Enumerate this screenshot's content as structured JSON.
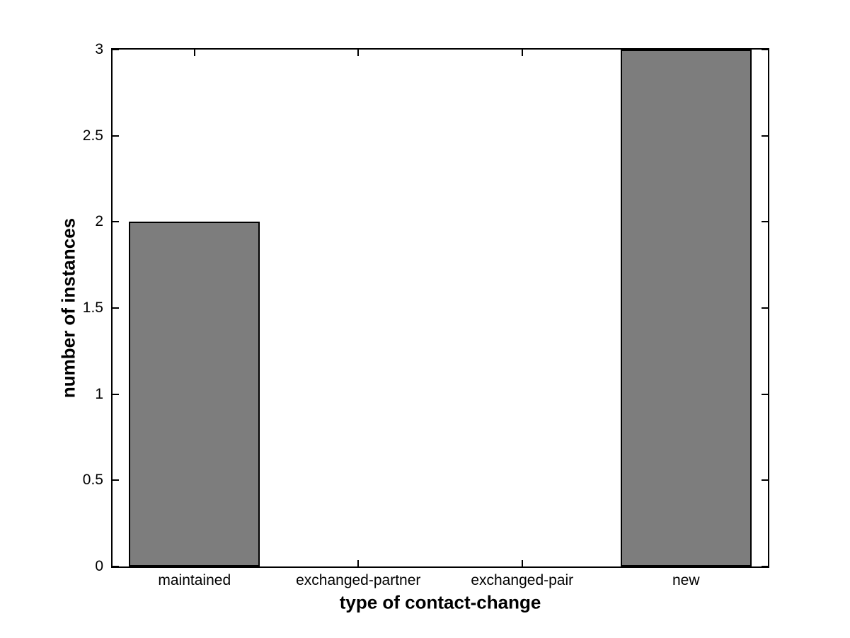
{
  "chart_data": {
    "type": "bar",
    "title": "",
    "xlabel": "type of contact-change",
    "ylabel": "number of instances",
    "categories": [
      "maintained",
      "exchanged-partner",
      "exchanged-pair",
      "new"
    ],
    "values": [
      2,
      0,
      0,
      3
    ],
    "ylim": [
      0,
      3
    ],
    "yticks": [
      0,
      0.5,
      1,
      1.5,
      2,
      2.5,
      3
    ],
    "ytick_labels": [
      "0",
      "0.5",
      "1",
      "1.5",
      "2",
      "2.5",
      "3"
    ],
    "bar_width_fraction": 0.8,
    "grid": false,
    "legend": null,
    "colors": {
      "bar_fill": "#7d7d7d",
      "bar_edge": "#000000",
      "axis": "#000000",
      "text": "#000000",
      "background": "#ffffff"
    }
  }
}
